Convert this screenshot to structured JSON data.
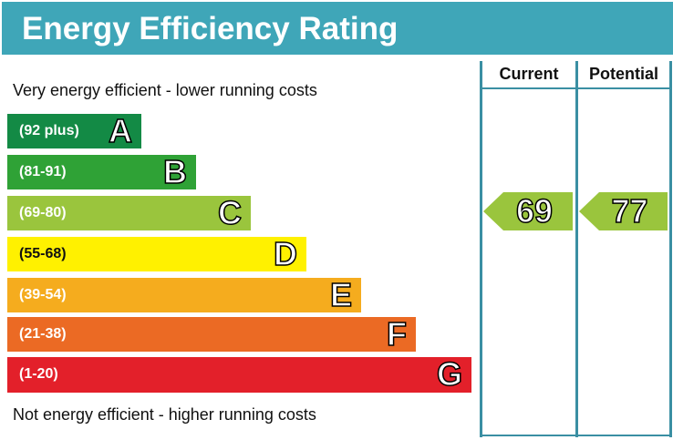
{
  "title": "Energy Efficiency Rating",
  "top_caption": "Very energy efficient - lower running costs",
  "bottom_caption": "Not energy efficient - higher running costs",
  "columns": {
    "current": "Current",
    "potential": "Potential"
  },
  "chart_data": {
    "type": "bar",
    "bands": [
      {
        "letter": "A",
        "range": "(92 plus)",
        "color": "#138a45"
      },
      {
        "letter": "B",
        "range": "(81-91)",
        "color": "#2fa236"
      },
      {
        "letter": "C",
        "range": "(69-80)",
        "color": "#9ac53d"
      },
      {
        "letter": "D",
        "range": "(55-68)",
        "color": "#fff100"
      },
      {
        "letter": "E",
        "range": "(39-54)",
        "color": "#f5ac1e"
      },
      {
        "letter": "F",
        "range": "(21-38)",
        "color": "#eb6a24"
      },
      {
        "letter": "G",
        "range": "(1-20)",
        "color": "#e3202a"
      }
    ],
    "current": {
      "value": "69",
      "band": "C",
      "color": "#9ac53d"
    },
    "potential": {
      "value": "77",
      "band": "C",
      "color": "#9ac53d"
    }
  }
}
